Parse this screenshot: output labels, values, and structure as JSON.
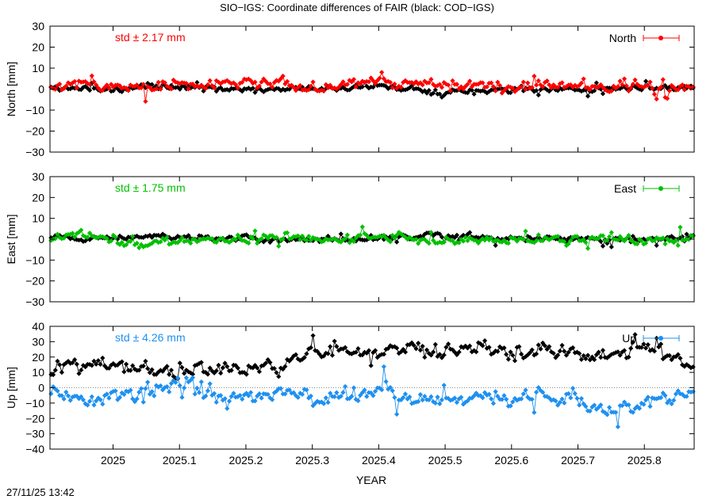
{
  "title": "SIO−IGS: Coordinate differences of FAIR (black: COD−IGS)",
  "timestamp": "27/11/25 13:42",
  "xlabel": "YEAR",
  "colors": {
    "north": "#ff0000",
    "east": "#00c000",
    "up": "#1e90f0",
    "reference": "#000000"
  },
  "chart_data": [
    {
      "type": "line",
      "panel": "North",
      "ylabel": "North [mm]",
      "legend": "North",
      "legend_placement": "top-right",
      "std_label": "std ± 2.17 mm",
      "xlim": [
        2024.905,
        2025.875
      ],
      "ylim": [
        -30,
        30
      ],
      "yticks": [
        "30",
        "20",
        "10",
        "0",
        "−10",
        "−20",
        "−30"
      ],
      "yticks_values": [
        30,
        20,
        10,
        0,
        -10,
        -20,
        -30
      ],
      "grid": false,
      "series": [
        {
          "color": "red",
          "level": 1,
          "spread": 2.17,
          "x": [
            2024.905,
            2024.95,
            2025.0,
            2025.05,
            2025.1,
            2025.15,
            2025.2,
            2025.25,
            2025.3,
            2025.35,
            2025.4,
            2025.45,
            2025.5,
            2025.55,
            2025.6,
            2025.65,
            2025.7,
            2025.75,
            2025.8,
            2025.875
          ],
          "y": [
            1,
            2,
            1,
            1,
            3,
            2,
            3,
            2,
            1,
            2,
            3,
            2,
            2,
            2,
            1,
            2,
            1,
            2,
            2,
            0
          ]
        },
        {
          "color": "black",
          "level": 0.5,
          "spread": 1.2,
          "x": [
            2024.905,
            2024.95,
            2025.0,
            2025.05,
            2025.1,
            2025.15,
            2025.2,
            2025.25,
            2025.3,
            2025.35,
            2025.4,
            2025.45,
            2025.5,
            2025.55,
            2025.6,
            2025.65,
            2025.7,
            2025.75,
            2025.8,
            2025.875
          ],
          "y": [
            0,
            0,
            0,
            1,
            1,
            1,
            0,
            0,
            0,
            0,
            1,
            0,
            -2,
            -1,
            0,
            0,
            0,
            0,
            0,
            1
          ]
        }
      ]
    },
    {
      "type": "line",
      "panel": "East",
      "ylabel": "East [mm]",
      "legend": "East",
      "legend_placement": "top-right",
      "std_label": "std ± 1.75 mm",
      "xlim": [
        2024.905,
        2025.875
      ],
      "ylim": [
        -30,
        30
      ],
      "yticks": [
        "30",
        "20",
        "10",
        "0",
        "−10",
        "−20",
        "−30"
      ],
      "yticks_values": [
        30,
        20,
        10,
        0,
        -10,
        -20,
        -30
      ],
      "grid": false,
      "series": [
        {
          "color": "green",
          "level": 0,
          "spread": 1.75,
          "x": [
            2024.905,
            2024.95,
            2025.0,
            2025.05,
            2025.1,
            2025.15,
            2025.2,
            2025.25,
            2025.3,
            2025.35,
            2025.4,
            2025.45,
            2025.5,
            2025.55,
            2025.6,
            2025.65,
            2025.7,
            2025.75,
            2025.8,
            2025.875
          ],
          "y": [
            1,
            2,
            0,
            -2,
            0,
            0,
            0,
            1,
            0,
            0,
            1,
            0,
            -1,
            0,
            0,
            0,
            0,
            0,
            0,
            -1
          ]
        },
        {
          "color": "black",
          "level": 0.3,
          "spread": 1.1,
          "x": [
            2024.905,
            2024.95,
            2025.0,
            2025.05,
            2025.1,
            2025.15,
            2025.2,
            2025.25,
            2025.3,
            2025.35,
            2025.4,
            2025.45,
            2025.5,
            2025.55,
            2025.6,
            2025.65,
            2025.7,
            2025.75,
            2025.8,
            2025.875
          ],
          "y": [
            1,
            0,
            1,
            1,
            1,
            0,
            1,
            0,
            0,
            0,
            0,
            1,
            2,
            1,
            0,
            0,
            0,
            0,
            0,
            1
          ]
        }
      ]
    },
    {
      "type": "line",
      "panel": "Up",
      "ylabel": "Up [mm]",
      "legend": "Up",
      "legend_placement": "top-right",
      "std_label": "std ± 4.26 mm",
      "xlim": [
        2024.905,
        2025.875
      ],
      "ylim": [
        -40,
        40
      ],
      "yticks": [
        "40",
        "30",
        "20",
        "10",
        "0",
        "−10",
        "−20",
        "−30",
        "−40"
      ],
      "yticks_values": [
        40,
        30,
        20,
        10,
        0,
        -10,
        -20,
        -30,
        -40
      ],
      "zero_line": "dotted",
      "grid": false,
      "series": [
        {
          "color": "blue",
          "level": -5,
          "spread": 4.26,
          "x": [
            2024.905,
            2024.95,
            2025.0,
            2025.05,
            2025.07,
            2025.1,
            2025.15,
            2025.2,
            2025.25,
            2025.3,
            2025.35,
            2025.4,
            2025.45,
            2025.5,
            2025.55,
            2025.6,
            2025.65,
            2025.7,
            2025.75,
            2025.8,
            2025.875
          ],
          "y": [
            -2,
            -10,
            -6,
            -4,
            4,
            3,
            -3,
            -8,
            -2,
            -8,
            -6,
            -2,
            -6,
            -7,
            -6,
            -8,
            -4,
            -9,
            -15,
            -10,
            -4
          ]
        },
        {
          "color": "black",
          "level": 15,
          "spread": 4,
          "x": [
            2024.905,
            2024.95,
            2025.0,
            2025.05,
            2025.07,
            2025.1,
            2025.15,
            2025.2,
            2025.25,
            2025.3,
            2025.35,
            2025.4,
            2025.45,
            2025.5,
            2025.55,
            2025.6,
            2025.65,
            2025.7,
            2025.75,
            2025.8,
            2025.875
          ],
          "y": [
            12,
            16,
            14,
            12,
            11,
            10,
            12,
            12,
            14,
            25,
            23,
            26,
            24,
            25,
            27,
            23,
            24,
            24,
            20,
            28,
            13
          ]
        }
      ]
    }
  ],
  "xticks": [
    "2025",
    "2025.1",
    "2025.2",
    "2025.3",
    "2025.4",
    "2025.5",
    "2025.6",
    "2025.7",
    "2025.8"
  ],
  "xticks_values": [
    2025.0,
    2025.1,
    2025.2,
    2025.3,
    2025.4,
    2025.5,
    2025.6,
    2025.7,
    2025.8
  ]
}
